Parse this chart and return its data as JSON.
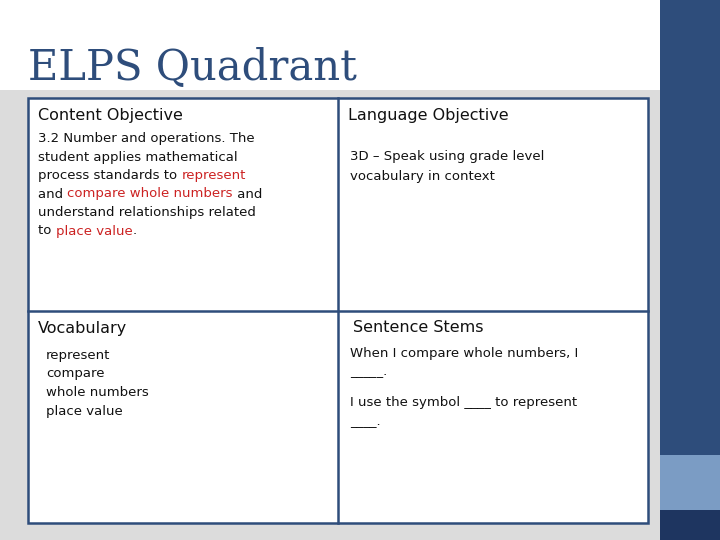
{
  "title": "ELPS Quadrant",
  "title_color": "#2E4D7B",
  "background_top_color": "#FFFFFF",
  "background_color": "#DCDCDC",
  "right_bar_color": "#2E4D7B",
  "right_bar_light_color": "#7B9CC4",
  "right_bar_dark_bottom": "#1E3560",
  "table_border_color": "#2E4D7B",
  "table_bg": "#FFFFFF",
  "quadrants": {
    "top_left_header": "Content Objective",
    "top_right_header": "Language Objective",
    "bottom_left_header": "Vocabulary",
    "bottom_right_header": "Sentence Stems"
  },
  "language_objective_text": "3D – Speak using grade level\nvocabulary in context",
  "vocabulary_items": [
    "represent",
    "compare",
    "whole numbers",
    "place value"
  ],
  "sentence_stem_1a": "When I compare whole numbers, I",
  "sentence_stem_1b": "_____.",
  "sentence_stem_2a": "I use the symbol ____ to represent",
  "sentence_stem_2b": "____.",
  "red_color": "#CC2222",
  "text_color": "#111111"
}
